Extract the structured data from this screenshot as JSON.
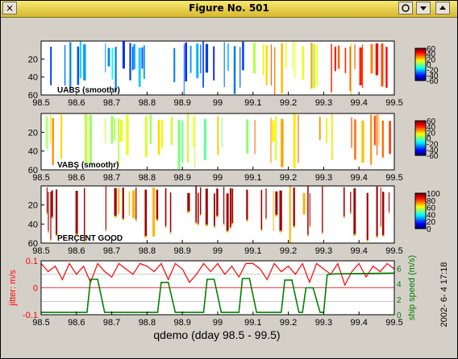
{
  "window": {
    "title": "Figure No. 501",
    "close_glyph": "×",
    "btn_icons": [
      "circle-icon",
      "minimize-icon",
      "maximize-icon"
    ]
  },
  "footer": {
    "xlabel": "qdemo (dday 98.5 - 99.5)",
    "timestamp": "2002- 6- 4  17:18"
  },
  "chart_data": [
    {
      "type": "heatmap",
      "label": "UABS  (smoothr)",
      "x_ticks": [
        "98.5",
        "98.6",
        "98.7",
        "98.8",
        "98.9",
        "99",
        "99.1",
        "99.2",
        "99.3",
        "99.4",
        "99.5"
      ],
      "xlim": [
        98.5,
        99.5
      ],
      "y_ticks": [
        "20",
        "40",
        "60"
      ],
      "ylim": [
        60,
        0
      ],
      "colorbar": {
        "ticks": [
          "60",
          "40",
          "20",
          "0",
          "-20",
          "-40",
          "-60"
        ],
        "range": [
          -60,
          60
        ]
      },
      "dominant_values_by_region": [
        {
          "x": [
            98.5,
            98.8
          ],
          "v": -25
        },
        {
          "x": [
            98.8,
            99.1
          ],
          "v": -35
        },
        {
          "x": [
            99.1,
            99.3
          ],
          "v": 20
        },
        {
          "x": [
            99.3,
            99.5
          ],
          "v": 35
        }
      ]
    },
    {
      "type": "heatmap",
      "label": "VABS  (smoothr)",
      "x_ticks": [
        "98.5",
        "98.6",
        "98.7",
        "98.8",
        "98.9",
        "99",
        "99.1",
        "99.2",
        "99.3",
        "99.4",
        "99.5"
      ],
      "xlim": [
        98.5,
        99.5
      ],
      "y_ticks": [
        "20",
        "40",
        "60"
      ],
      "ylim": [
        60,
        0
      ],
      "colorbar": {
        "ticks": [
          "60",
          "40",
          "20",
          "0",
          "-20",
          "-40",
          "-60"
        ],
        "range": [
          -60,
          60
        ]
      },
      "dominant_values_by_region": [
        {
          "x": [
            98.5,
            98.8
          ],
          "v": 15
        },
        {
          "x": [
            98.8,
            99.1
          ],
          "v": 10
        },
        {
          "x": [
            99.1,
            99.5
          ],
          "v": 25
        }
      ]
    },
    {
      "type": "heatmap",
      "label": "PERCENT GOOD",
      "x_ticks": [
        "98.5",
        "98.6",
        "98.7",
        "98.8",
        "98.9",
        "99",
        "99.1",
        "99.2",
        "99.3",
        "99.4",
        "99.5"
      ],
      "xlim": [
        98.5,
        99.5
      ],
      "y_ticks": [
        "20",
        "40",
        "60"
      ],
      "ylim": [
        60,
        0
      ],
      "colorbar": {
        "ticks": [
          "100",
          "80",
          "60",
          "40",
          "20",
          "0"
        ],
        "range": [
          0,
          100
        ]
      },
      "dominant_values_by_region": [
        {
          "x": [
            98.5,
            99.5
          ],
          "v": 100
        }
      ]
    },
    {
      "type": "line",
      "x_ticks": [
        "98.5",
        "98.6",
        "98.7",
        "98.8",
        "98.9",
        "99",
        "99.1",
        "99.2",
        "99.3",
        "99.4",
        "99.5"
      ],
      "xlim": [
        98.5,
        99.5
      ],
      "y_left": {
        "label": "jitter: m/s",
        "ticks": [
          "0.1",
          "0",
          "-0.1"
        ],
        "range": [
          -0.1,
          0.1
        ],
        "color": "#ff0000"
      },
      "y_right": {
        "label": "ship speed (m/s)",
        "ticks": [
          "6",
          "4",
          "2",
          "0"
        ],
        "range": [
          0,
          7
        ],
        "color": "#008000"
      },
      "series": [
        {
          "axis": "left",
          "color": "#ff0000",
          "x": [
            98.5,
            98.52,
            98.54,
            98.56,
            98.58,
            98.6,
            98.62,
            98.64,
            98.66,
            98.68,
            98.7,
            98.72,
            98.74,
            98.76,
            98.78,
            98.8,
            98.82,
            98.84,
            98.86,
            98.88,
            98.9,
            98.92,
            98.94,
            98.96,
            98.98,
            99.0,
            99.02,
            99.04,
            99.06,
            99.08,
            99.1,
            99.12,
            99.14,
            99.16,
            99.18,
            99.2,
            99.22,
            99.24,
            99.26,
            99.28,
            99.3,
            99.32,
            99.34,
            99.36,
            99.38,
            99.4,
            99.42,
            99.44,
            99.46,
            99.48,
            99.5
          ],
          "y": [
            0.09,
            0.06,
            0.08,
            0.03,
            0.09,
            0.05,
            0.08,
            0.02,
            0.09,
            0.06,
            0.04,
            0.09,
            0.07,
            0.05,
            0.09,
            0.08,
            0.06,
            0.09,
            0.03,
            0.09,
            0.07,
            0.02,
            0.05,
            0.09,
            0.06,
            0.09,
            0.05,
            0.08,
            0.04,
            0.09,
            0.09,
            0.07,
            0.03,
            0.09,
            0.06,
            0.08,
            0.05,
            0.09,
            0.02,
            0.09,
            0.07,
            0.05,
            0.09,
            0.01,
            0.06,
            0.09,
            0.04,
            0.08,
            0.06,
            0.09,
            0.07
          ]
        },
        {
          "axis": "right",
          "color": "#008000",
          "x": [
            98.5,
            98.63,
            98.64,
            98.66,
            98.68,
            98.83,
            98.84,
            98.86,
            98.88,
            98.96,
            98.97,
            98.99,
            99.01,
            99.06,
            99.07,
            99.09,
            99.11,
            99.18,
            99.19,
            99.21,
            99.23,
            99.24,
            99.25,
            99.27,
            99.29,
            99.3,
            99.31,
            99.33,
            99.5
          ],
          "y": [
            0.3,
            0.3,
            4.6,
            4.6,
            0.3,
            0.3,
            4.2,
            4.2,
            0.3,
            0.3,
            4.6,
            4.6,
            0.3,
            0.3,
            4.7,
            4.7,
            0.3,
            0.3,
            4.5,
            4.5,
            0.3,
            0.3,
            3.5,
            3.5,
            0.3,
            0.3,
            5.2,
            5.3,
            5.4
          ]
        }
      ]
    }
  ]
}
